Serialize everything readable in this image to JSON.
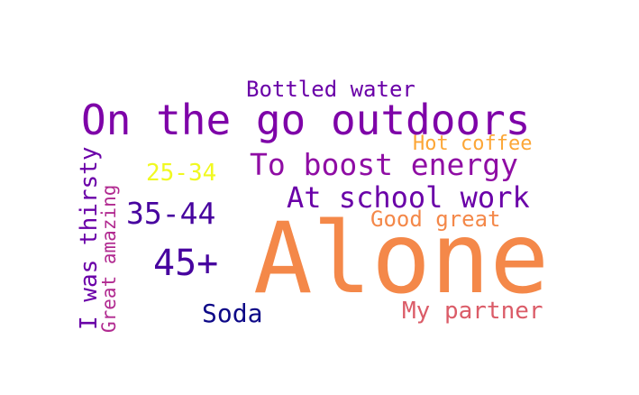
{
  "words": {
    "bottled_water": {
      "text": "Bottled water",
      "color": "#6a00a8"
    },
    "on_the_go": {
      "text": "On the go outdoors",
      "color": "#7e03a8"
    },
    "hot_coffee": {
      "text": "Hot coffee",
      "color": "#fca636"
    },
    "age_25_34": {
      "text": "25-34",
      "color": "#f0f921"
    },
    "to_boost_energy": {
      "text": "To boost energy",
      "color": "#8f0da4"
    },
    "i_was_thirsty": {
      "text": "I was thirsty",
      "color": "#6a00a8"
    },
    "great_amazing": {
      "text": "Great amazing",
      "color": "#b12a90"
    },
    "at_school_work": {
      "text": "At school work",
      "color": "#6a00a8"
    },
    "age_35_44": {
      "text": "35-44",
      "color": "#47039f"
    },
    "good_great": {
      "text": "Good great",
      "color": "#f48849"
    },
    "alone": {
      "text": "Alone",
      "color": "#f48849"
    },
    "age_45_plus": {
      "text": "45+",
      "color": "#47039f"
    },
    "soda": {
      "text": "Soda",
      "color": "#0d0887"
    },
    "my_partner": {
      "text": "My partner",
      "color": "#db5c68"
    }
  }
}
